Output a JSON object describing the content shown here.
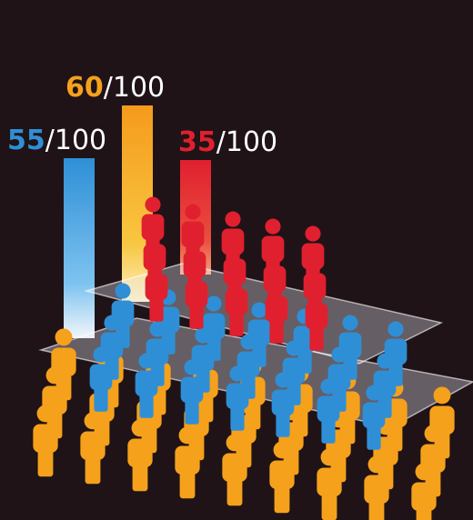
{
  "chart_data": {
    "type": "bar",
    "categories": [
      null,
      null,
      null
    ],
    "values": [
      55,
      60,
      35
    ],
    "value_labels": [
      "55/100",
      "60/100",
      "35/100"
    ],
    "colors": [
      "#2f8fd6",
      "#f5a11c",
      "#e0202f"
    ]
  }
}
